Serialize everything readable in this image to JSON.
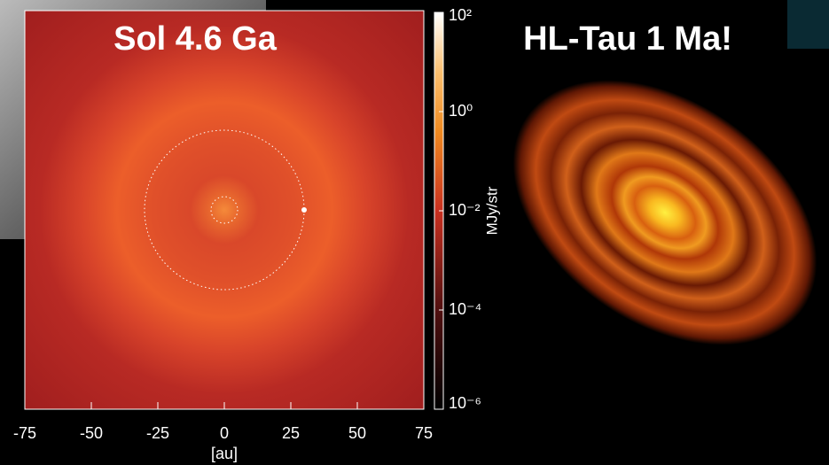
{
  "chart_data": {
    "type": "image",
    "title": "Sol 4.6 Ga",
    "xlabel": "[au]",
    "xlim": [
      -75,
      75
    ],
    "xticks": [
      -75,
      -50,
      -25,
      0,
      25,
      50,
      75
    ],
    "colorbar": {
      "label": "MJy/str",
      "log": true,
      "lim": [
        1e-06,
        100
      ],
      "ticks": [
        {
          "value": 100,
          "label": "10²"
        },
        {
          "value": 1,
          "label": "10⁰"
        },
        {
          "value": 0.01,
          "label": "10⁻²"
        },
        {
          "value": 0.0001,
          "label": "10⁻⁴"
        },
        {
          "value": 1e-06,
          "label": "10⁻⁶"
        }
      ]
    }
  },
  "right_panel": {
    "title": "HL-Tau 1 Ma!"
  }
}
